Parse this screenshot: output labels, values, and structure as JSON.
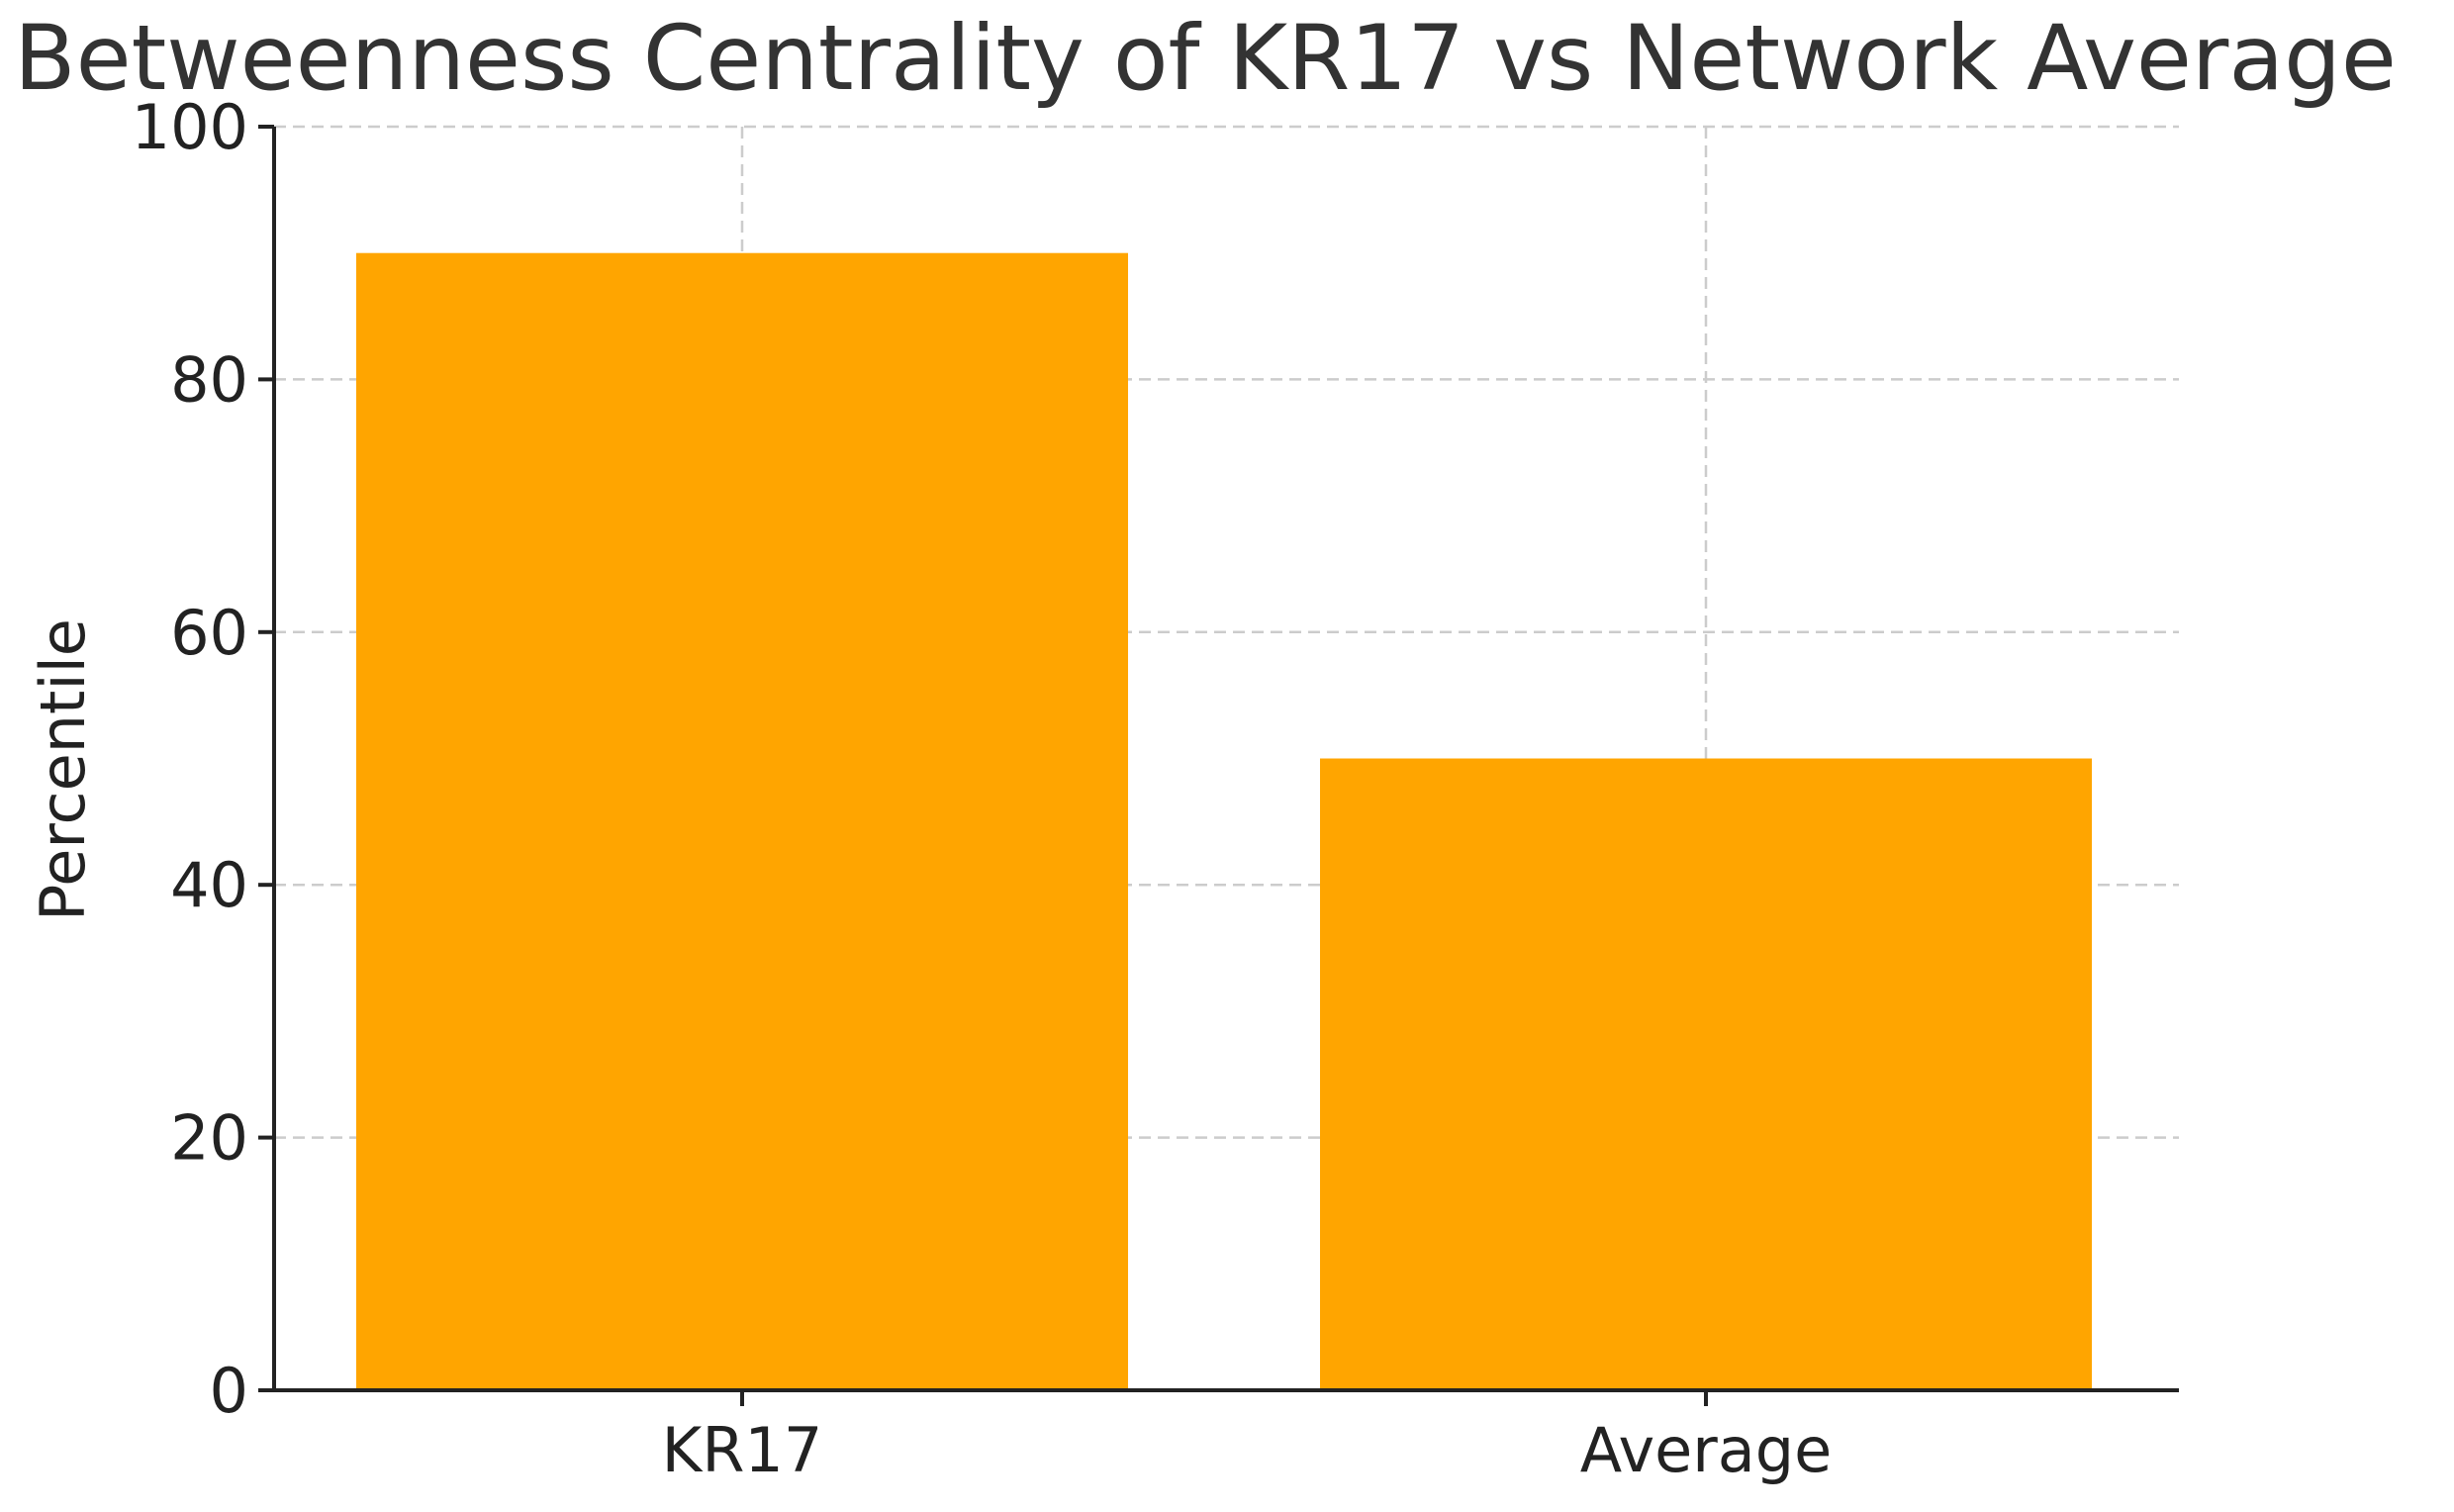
{
  "chart_data": {
    "type": "bar",
    "title": "Betweenness Centrality of KR17 vs Network Average",
    "xlabel": "",
    "ylabel": "Percentile",
    "categories": [
      "KR17",
      "Average"
    ],
    "values": [
      90,
      50
    ],
    "ylim": [
      0,
      100
    ],
    "yticks": [
      0,
      20,
      40,
      60,
      80,
      100
    ],
    "grid": true,
    "bar_color": "#FFA500",
    "axis_color": "#222222",
    "grid_color": "#cccccc"
  }
}
